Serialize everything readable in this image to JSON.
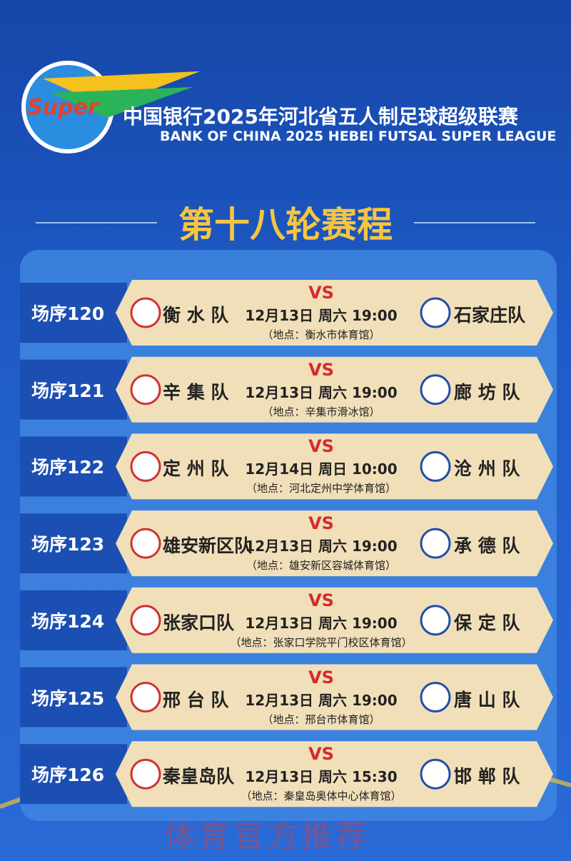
{
  "header": {
    "logo_text": "Super",
    "title": "中国银行2025年河北省五人制足球超级联赛",
    "subtitle": "BANK OF CHINA 2025 HEBEI FUTSAL SUPER LEAGUE"
  },
  "round_title": "第十八轮赛程",
  "matches": [
    {
      "seq": "场序120",
      "home": "衡 水 队",
      "vs": "VS",
      "datetime": "12月13日 周六 19:00",
      "venue": "（地点：衡水市体育馆）",
      "away": "石家庄队"
    },
    {
      "seq": "场序121",
      "home": "辛 集 队",
      "vs": "VS",
      "datetime": "12月13日 周六 19:00",
      "venue": "（地点：辛集市滑冰馆）",
      "away": "廊 坊 队"
    },
    {
      "seq": "场序122",
      "home": "定 州 队",
      "vs": "VS",
      "datetime": "12月14日 周日 10:00",
      "venue": "（地点：河北定州中学体育馆）",
      "away": "沧 州 队"
    },
    {
      "seq": "场序123",
      "home": "雄安新区队",
      "vs": "VS",
      "datetime": "12月13日 周六 19:00",
      "venue": "（地点：雄安新区容城体育馆）",
      "away": "承 德 队"
    },
    {
      "seq": "场序124",
      "home": "张家口队",
      "vs": "VS",
      "datetime": "12月13日 周六 19:00",
      "venue": "（地点：张家口学院平门校区体育馆）",
      "away": "保 定 队"
    },
    {
      "seq": "场序125",
      "home": "邢 台 队",
      "vs": "VS",
      "datetime": "12月13日 周六 19:00",
      "venue": "（地点：邢台市体育馆）",
      "away": "唐 山 队"
    },
    {
      "seq": "场序126",
      "home": "秦皇岛队",
      "vs": "VS",
      "datetime": "12月13日 周六 15:30",
      "venue": "（地点：秦皇岛奥体中心体育馆）",
      "away": "邯 郸 队"
    }
  ],
  "watermark": "体育官方推荐"
}
